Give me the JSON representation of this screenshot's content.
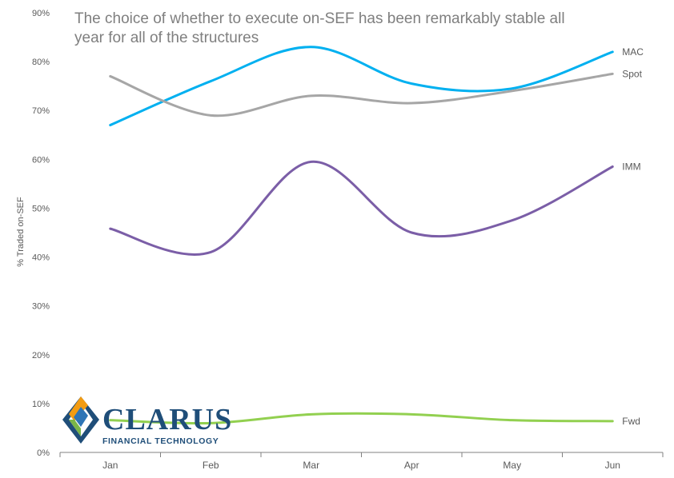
{
  "colors": {
    "MAC": "#00b0f0",
    "Spot": "#a6a6a6",
    "IMM": "#7b5ea7",
    "Fwd": "#92d050",
    "axis": "#808080",
    "text": "#595959",
    "title": "#7f7f7f",
    "logo_blue": "#1f4e79",
    "logo_green": "#7ab648",
    "logo_orange": "#f39c12"
  },
  "logo": {
    "word": "CLARUS",
    "sub": "FINANCIAL TECHNOLOGY"
  },
  "chart_data": {
    "type": "line",
    "title": "The choice of whether to execute on-SEF has been remarkably stable all year for all of the structures",
    "xlabel": "",
    "ylabel": "% Traded on-SEF",
    "categories": [
      "Jan",
      "Feb",
      "Mar",
      "Apr",
      "May",
      "Jun"
    ],
    "ylim": [
      0,
      90
    ],
    "yticks": [
      "0%",
      "10%",
      "20%",
      "30%",
      "40%",
      "50%",
      "60%",
      "70%",
      "80%",
      "90%"
    ],
    "grid": false,
    "legend": "inline labels at line ends",
    "smooth": true,
    "series": [
      {
        "name": "MAC",
        "values": [
          67,
          76,
          83,
          75.5,
          74.5,
          82
        ]
      },
      {
        "name": "Spot",
        "values": [
          77,
          69,
          73,
          71.5,
          74,
          77.5
        ]
      },
      {
        "name": "IMM",
        "values": [
          45.8,
          41,
          59.5,
          45,
          47.5,
          58.5
        ]
      },
      {
        "name": "Fwd",
        "values": [
          6.6,
          6,
          7.8,
          7.8,
          6.6,
          6.4
        ]
      }
    ]
  }
}
